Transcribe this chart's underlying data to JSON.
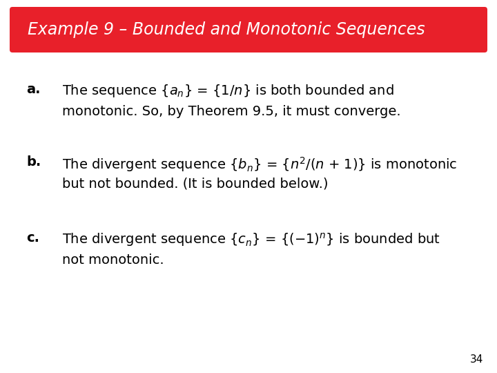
{
  "title": "Example 9 – Bounded and Monotonic Sequences",
  "title_bg_color": "#E8202A",
  "title_text_color": "#FFFFFF",
  "bg_color": "#FFFFFF",
  "page_number": "34",
  "font_size_title": 17,
  "font_size_body": 14,
  "font_size_page": 11,
  "line_a1": "The sequence {$a_n$} = {1/$n$} is both bounded and",
  "line_a2": "monotonic. So, by Theorem 9.5, it must converge.",
  "line_b1": "The divergent sequence {$b_n$} = {$n^2$/$n$ + 1)} is monotonic",
  "line_b1_manual": true,
  "line_b2": "but not bounded. (It is bounded below.)",
  "line_c1": "The divergent sequence {$c_n$} = {$(-1)^n$} is bounded but",
  "line_c2": "not monotonic.",
  "label_a": "a.",
  "label_b": "b.",
  "label_c": "c."
}
